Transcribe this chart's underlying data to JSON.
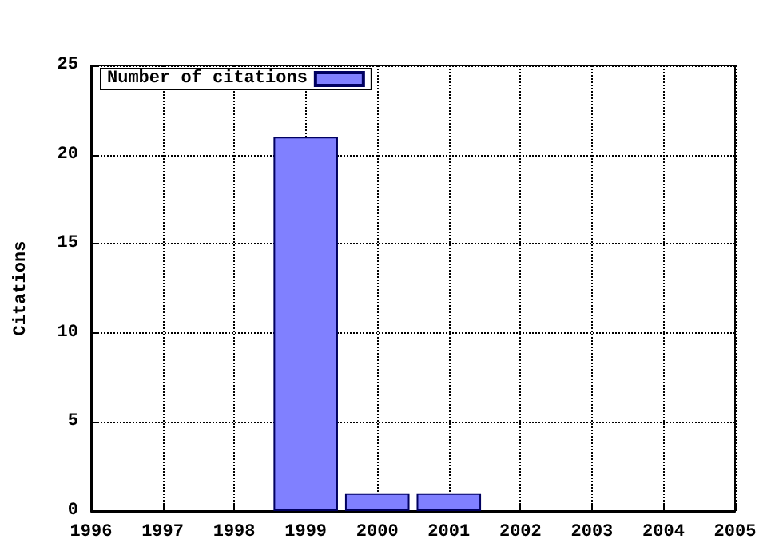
{
  "chart_data": {
    "type": "bar",
    "ylabel": "Citations",
    "x": [
      1999,
      2000,
      2001
    ],
    "series": [
      {
        "name": "Number of citations",
        "color": "#8080ff",
        "values": [
          21,
          1,
          1
        ]
      }
    ],
    "xlim": [
      1996,
      2005
    ],
    "xticks": [
      1996,
      1997,
      1998,
      1999,
      2000,
      2001,
      2002,
      2003,
      2004,
      2005
    ],
    "ylim": [
      0,
      25
    ],
    "yticks": [
      0,
      5,
      10,
      15,
      20,
      25
    ],
    "grid": true,
    "legend": "top left"
  }
}
